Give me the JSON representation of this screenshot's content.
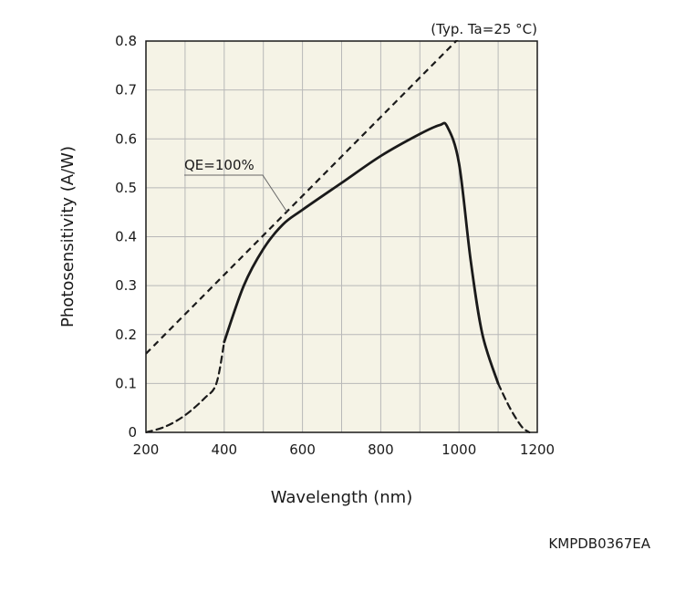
{
  "chart_data": {
    "type": "line",
    "title": "",
    "condition": "(Typ. Ta=25 °C)",
    "xlabel": "Wavelength (nm)",
    "ylabel": "Photosensitivity (A/W)",
    "xlim": [
      200,
      1200
    ],
    "ylim": [
      0,
      0.8
    ],
    "xticks": [
      200,
      400,
      600,
      800,
      1000,
      1200
    ],
    "yticks": [
      0,
      0.1,
      0.2,
      0.3,
      0.4,
      0.5,
      0.6,
      0.7,
      0.8
    ],
    "grid": true,
    "plot_background": "#f5f3e6",
    "annotation": "QE=100%",
    "qe_line": {
      "style": "dashed",
      "points": [
        [
          200,
          0.161
        ],
        [
          1000,
          0.806
        ]
      ]
    },
    "series": [
      {
        "style": "dashed",
        "points": [
          [
            200,
            0.0
          ],
          [
            250,
            0.012
          ],
          [
            300,
            0.035
          ],
          [
            350,
            0.07
          ],
          [
            380,
            0.1
          ],
          [
            400,
            0.185
          ]
        ]
      },
      {
        "style": "solid",
        "points": [
          [
            400,
            0.185
          ],
          [
            450,
            0.3
          ],
          [
            500,
            0.375
          ],
          [
            550,
            0.425
          ],
          [
            600,
            0.455
          ],
          [
            700,
            0.51
          ],
          [
            800,
            0.565
          ],
          [
            900,
            0.61
          ],
          [
            950,
            0.628
          ],
          [
            970,
            0.625
          ],
          [
            1000,
            0.55
          ],
          [
            1030,
            0.35
          ],
          [
            1060,
            0.2
          ],
          [
            1100,
            0.1
          ]
        ]
      },
      {
        "style": "dashed",
        "points": [
          [
            1100,
            0.1
          ],
          [
            1130,
            0.05
          ],
          [
            1160,
            0.012
          ],
          [
            1180,
            0.0
          ]
        ]
      }
    ]
  },
  "figure_code": "KMPDB0367EA"
}
